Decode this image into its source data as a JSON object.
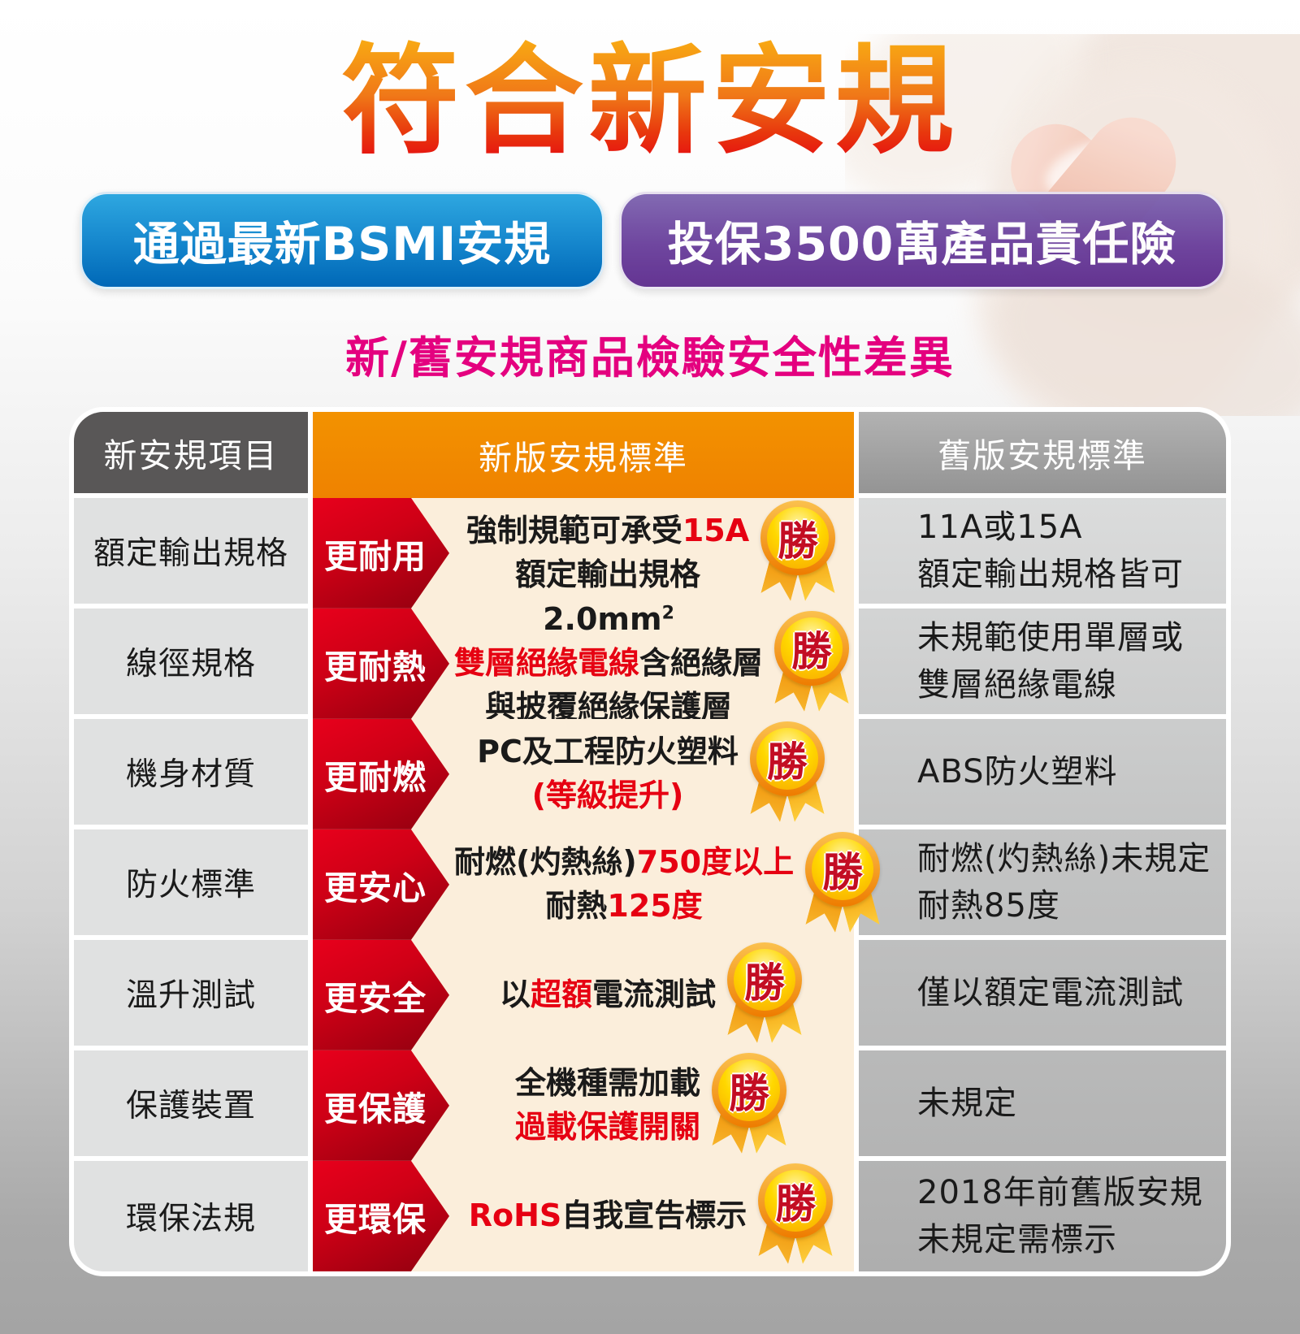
{
  "page": {
    "title": "符合新安規",
    "badge_blue": "通過最新BSMI安規",
    "badge_purple": "投保3500萬產品責任險",
    "subtitle": "新/舊安規商品檢驗安全性差異"
  },
  "colors": {
    "title_gradient_top": "#F9AE13",
    "title_gradient_bottom": "#E50012",
    "blue_badge_top": "#2EA7E0",
    "blue_badge_bottom": "#0068B7",
    "purple_badge_top": "#7D64AF",
    "purple_badge_bottom": "#5E2D8E",
    "subtitle_pink": "#E4007F",
    "header_dark_gray": "#595757",
    "header_orange": "#EF8200",
    "arrow_red": "#CF0016",
    "new_col_cream": "#FBEEDB",
    "emphasis_red": "#E60012"
  },
  "table": {
    "medal_label": "勝",
    "headers": [
      "新安規項目",
      "新版安規標準",
      "舊版安規標準"
    ],
    "rows": [
      {
        "item": "額定輸出規格",
        "badge": "更耐用",
        "new_lines": [
          [
            {
              "text": "強制規範可承受",
              "color": "black"
            },
            {
              "text": "15A",
              "color": "red"
            }
          ],
          [
            {
              "text": "額定輸出規格",
              "color": "black"
            }
          ]
        ],
        "old_lines": [
          "11A或15A",
          "額定輸出規格皆可"
        ]
      },
      {
        "item": "線徑規格",
        "badge": "更耐熱",
        "new_lines": [
          [
            {
              "text": "2.0mm",
              "color": "black"
            },
            {
              "text": "2",
              "color": "black",
              "sup": true
            }
          ],
          [
            {
              "text": "雙層絕緣電線",
              "color": "red"
            },
            {
              "text": "含絕緣層",
              "color": "black"
            }
          ],
          [
            {
              "text": "與披覆絕緣保護層",
              "color": "black"
            }
          ]
        ],
        "old_lines": [
          "未規範使用單層或",
          "雙層絕緣電線"
        ]
      },
      {
        "item": "機身材質",
        "badge": "更耐燃",
        "new_lines": [
          [
            {
              "text": "PC及工程防火塑料",
              "color": "black"
            }
          ],
          [
            {
              "text": "(等級提升)",
              "color": "red"
            }
          ]
        ],
        "old_lines": [
          "ABS防火塑料"
        ]
      },
      {
        "item": "防火標準",
        "badge": "更安心",
        "new_lines": [
          [
            {
              "text": "耐燃(灼熱絲)",
              "color": "black"
            },
            {
              "text": "750度以上",
              "color": "red"
            }
          ],
          [
            {
              "text": "耐熱",
              "color": "black"
            },
            {
              "text": "125度",
              "color": "red"
            }
          ]
        ],
        "old_lines": [
          "耐燃(灼熱絲)未規定",
          "耐熱85度"
        ]
      },
      {
        "item": "溫升測試",
        "badge": "更安全",
        "new_lines": [
          [
            {
              "text": "以",
              "color": "black"
            },
            {
              "text": "超額",
              "color": "red"
            },
            {
              "text": "電流測試",
              "color": "black"
            }
          ]
        ],
        "old_lines": [
          "僅以額定電流測試"
        ]
      },
      {
        "item": "保護裝置",
        "badge": "更保護",
        "new_lines": [
          [
            {
              "text": "全機種需加載",
              "color": "black"
            }
          ],
          [
            {
              "text": "過載保護開關",
              "color": "red"
            }
          ]
        ],
        "old_lines": [
          "未規定"
        ]
      },
      {
        "item": "環保法規",
        "badge": "更環保",
        "new_lines": [
          [
            {
              "text": "RoHS",
              "color": "red"
            },
            {
              "text": "自我宣告標示",
              "color": "black"
            }
          ]
        ],
        "old_lines": [
          "2018年前舊版安規",
          "未規定需標示"
        ]
      }
    ]
  }
}
